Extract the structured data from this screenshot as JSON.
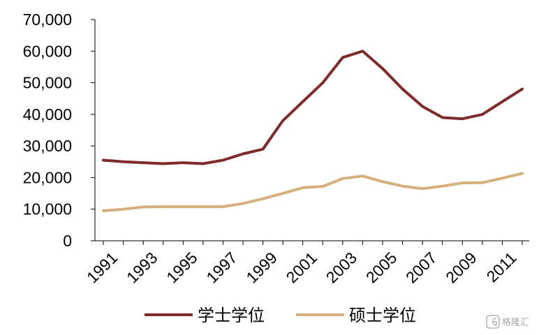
{
  "chart_data": {
    "type": "line",
    "title": "",
    "xlabel": "",
    "ylabel": "",
    "x": [
      1991,
      1992,
      1993,
      1994,
      1995,
      1996,
      1997,
      1998,
      1999,
      2000,
      2001,
      2002,
      2003,
      2004,
      2005,
      2006,
      2007,
      2008,
      2009,
      2010,
      2011,
      2012
    ],
    "x_tick_labels": [
      "1991",
      "1993",
      "1995",
      "1997",
      "1999",
      "2001",
      "2003",
      "2005",
      "2007",
      "2009",
      "2011"
    ],
    "y_tick_labels": [
      "0",
      "10,000",
      "20,000",
      "30,000",
      "40,000",
      "50,000",
      "60,000",
      "70,000"
    ],
    "ylim": [
      0,
      70000
    ],
    "grid": false,
    "legend_position": "bottom",
    "series": [
      {
        "name": "学士学位",
        "color": "#7f2b2b",
        "values": [
          25500,
          25000,
          24700,
          24400,
          24700,
          24400,
          25500,
          27500,
          29000,
          38000,
          44000,
          50000,
          58000,
          60000,
          54500,
          48000,
          42500,
          39000,
          38600,
          40000,
          44000,
          48000
        ]
      },
      {
        "name": "硕士学位",
        "color": "#d5b07c",
        "values": [
          9500,
          10000,
          10700,
          10800,
          10800,
          10800,
          10800,
          11800,
          13300,
          15000,
          16800,
          17200,
          19700,
          20500,
          18700,
          17300,
          16500,
          17300,
          18300,
          18400,
          19800,
          21300
        ]
      }
    ]
  },
  "watermark": {
    "text": "格隆汇"
  }
}
